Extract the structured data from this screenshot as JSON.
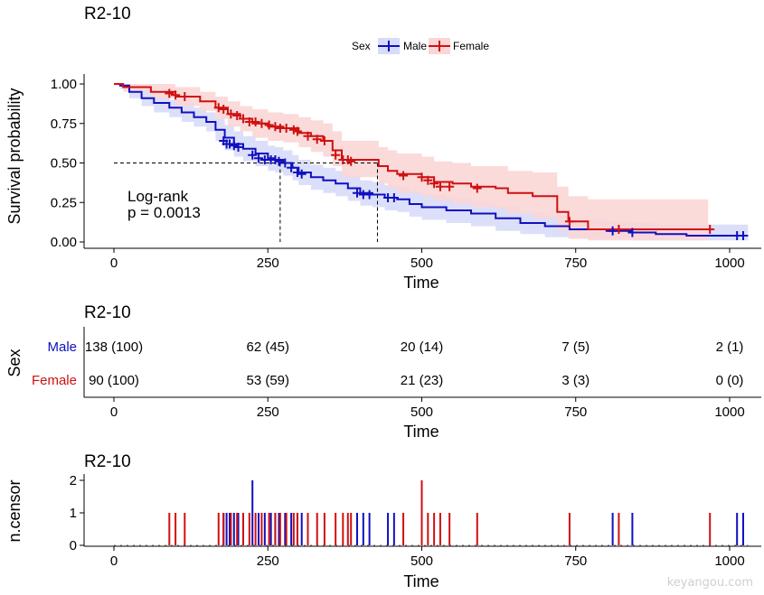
{
  "chart_data": [
    {
      "type": "line",
      "subtype": "kaplan-meier",
      "title": "R2-10",
      "xlabel": "Time",
      "ylabel": "Survival probability",
      "xlim": [
        0,
        1050
      ],
      "ylim": [
        0,
        1
      ],
      "xticks": [
        "0",
        "250",
        "500",
        "750",
        "1000"
      ],
      "yticks": [
        "0.00",
        "0.25",
        "0.50",
        "0.75",
        "1.00"
      ],
      "legend": {
        "title": "Sex",
        "placement": "top",
        "entries": [
          "Male",
          "Female"
        ]
      },
      "colors": {
        "Male": "#1010c0",
        "Female": "#d01010",
        "MaleBand": "#d8dcf8",
        "FemaleBand": "#fbd6d6"
      },
      "annotation": [
        "Log-rank",
        "p = 0.0013"
      ],
      "median_lines": [
        270,
        428
      ],
      "series": [
        {
          "name": "Male",
          "steps": [
            [
              0,
              1.0
            ],
            [
              10,
              0.99
            ],
            [
              25,
              0.95
            ],
            [
              45,
              0.91
            ],
            [
              65,
              0.88
            ],
            [
              90,
              0.85
            ],
            [
              110,
              0.82
            ],
            [
              130,
              0.79
            ],
            [
              150,
              0.76
            ],
            [
              165,
              0.71
            ],
            [
              180,
              0.66
            ],
            [
              195,
              0.62
            ],
            [
              210,
              0.59
            ],
            [
              230,
              0.56
            ],
            [
              250,
              0.53
            ],
            [
              262,
              0.52
            ],
            [
              275,
              0.5
            ],
            [
              290,
              0.47
            ],
            [
              300,
              0.44
            ],
            [
              320,
              0.41
            ],
            [
              340,
              0.39
            ],
            [
              360,
              0.37
            ],
            [
              380,
              0.34
            ],
            [
              400,
              0.31
            ],
            [
              420,
              0.3
            ],
            [
              440,
              0.28
            ],
            [
              460,
              0.27
            ],
            [
              480,
              0.24
            ],
            [
              500,
              0.22
            ],
            [
              540,
              0.2
            ],
            [
              580,
              0.18
            ],
            [
              620,
              0.15
            ],
            [
              660,
              0.12
            ],
            [
              700,
              0.1
            ],
            [
              740,
              0.08
            ],
            [
              800,
              0.07
            ],
            [
              840,
              0.06
            ],
            [
              880,
              0.05
            ],
            [
              930,
              0.04
            ],
            [
              1030,
              0.04
            ]
          ],
          "upper": [
            1.0,
            1.0,
            0.99,
            0.96,
            0.93,
            0.9,
            0.88,
            0.85,
            0.82,
            0.78,
            0.74,
            0.7,
            0.67,
            0.64,
            0.61,
            0.6,
            0.58,
            0.55,
            0.52,
            0.49,
            0.47,
            0.45,
            0.42,
            0.39,
            0.38,
            0.36,
            0.35,
            0.32,
            0.3,
            0.28,
            0.26,
            0.23,
            0.19,
            0.17,
            0.14,
            0.13,
            0.12,
            0.11,
            0.11,
            0.11
          ],
          "lower": [
            1.0,
            0.97,
            0.91,
            0.86,
            0.82,
            0.79,
            0.76,
            0.73,
            0.7,
            0.64,
            0.58,
            0.54,
            0.51,
            0.48,
            0.45,
            0.44,
            0.42,
            0.39,
            0.36,
            0.33,
            0.31,
            0.29,
            0.26,
            0.23,
            0.22,
            0.2,
            0.19,
            0.16,
            0.14,
            0.12,
            0.1,
            0.07,
            0.05,
            0.03,
            0.02,
            0.02,
            0.01,
            0.01,
            0.01,
            0.01
          ],
          "censor_marks": [
            [
              178,
              0.64
            ],
            [
              183,
              0.62
            ],
            [
              188,
              0.62
            ],
            [
              195,
              0.61
            ],
            [
              202,
              0.6
            ],
            [
              225,
              0.55
            ],
            [
              235,
              0.53
            ],
            [
              245,
              0.52
            ],
            [
              255,
              0.52
            ],
            [
              262,
              0.52
            ],
            [
              268,
              0.51
            ],
            [
              278,
              0.5
            ],
            [
              288,
              0.47
            ],
            [
              298,
              0.44
            ],
            [
              305,
              0.43
            ],
            [
              395,
              0.31
            ],
            [
              405,
              0.3
            ],
            [
              415,
              0.3
            ],
            [
              445,
              0.28
            ],
            [
              455,
              0.28
            ],
            [
              810,
              0.07
            ],
            [
              842,
              0.06
            ],
            [
              1012,
              0.04
            ],
            [
              1022,
              0.04
            ]
          ]
        },
        {
          "name": "Female",
          "steps": [
            [
              0,
              1.0
            ],
            [
              15,
              0.98
            ],
            [
              60,
              0.95
            ],
            [
              100,
              0.92
            ],
            [
              140,
              0.89
            ],
            [
              165,
              0.85
            ],
            [
              185,
              0.81
            ],
            [
              205,
              0.78
            ],
            [
              225,
              0.75
            ],
            [
              250,
              0.73
            ],
            [
              275,
              0.72
            ],
            [
              300,
              0.69
            ],
            [
              320,
              0.67
            ],
            [
              340,
              0.64
            ],
            [
              355,
              0.58
            ],
            [
              370,
              0.52
            ],
            [
              395,
              0.52
            ],
            [
              430,
              0.48
            ],
            [
              445,
              0.45
            ],
            [
              460,
              0.43
            ],
            [
              500,
              0.41
            ],
            [
              520,
              0.38
            ],
            [
              550,
              0.37
            ],
            [
              580,
              0.35
            ],
            [
              620,
              0.34
            ],
            [
              640,
              0.31
            ],
            [
              680,
              0.29
            ],
            [
              720,
              0.19
            ],
            [
              738,
              0.13
            ],
            [
              770,
              0.08
            ],
            [
              965,
              0.08
            ]
          ],
          "upper": [
            1.0,
            1.0,
            1.0,
            0.98,
            0.95,
            0.92,
            0.89,
            0.86,
            0.84,
            0.82,
            0.81,
            0.79,
            0.77,
            0.75,
            0.7,
            0.64,
            0.64,
            0.6,
            0.58,
            0.56,
            0.54,
            0.51,
            0.5,
            0.48,
            0.48,
            0.45,
            0.44,
            0.35,
            0.29,
            0.27,
            0.27
          ],
          "lower": [
            1.0,
            0.95,
            0.91,
            0.86,
            0.83,
            0.78,
            0.73,
            0.7,
            0.66,
            0.64,
            0.63,
            0.6,
            0.57,
            0.54,
            0.48,
            0.41,
            0.41,
            0.37,
            0.34,
            0.31,
            0.29,
            0.26,
            0.24,
            0.22,
            0.21,
            0.18,
            0.15,
            0.07,
            0.02,
            0.01,
            0.01
          ],
          "censor_marks": [
            [
              90,
              0.94
            ],
            [
              100,
              0.93
            ],
            [
              115,
              0.92
            ],
            [
              170,
              0.85
            ],
            [
              178,
              0.84
            ],
            [
              190,
              0.81
            ],
            [
              200,
              0.8
            ],
            [
              210,
              0.78
            ],
            [
              220,
              0.76
            ],
            [
              230,
              0.76
            ],
            [
              240,
              0.75
            ],
            [
              252,
              0.74
            ],
            [
              262,
              0.73
            ],
            [
              270,
              0.72
            ],
            [
              280,
              0.72
            ],
            [
              292,
              0.71
            ],
            [
              298,
              0.7
            ],
            [
              315,
              0.67
            ],
            [
              330,
              0.65
            ],
            [
              342,
              0.64
            ],
            [
              360,
              0.55
            ],
            [
              372,
              0.52
            ],
            [
              380,
              0.52
            ],
            [
              385,
              0.51
            ],
            [
              470,
              0.42
            ],
            [
              500,
              0.41
            ],
            [
              510,
              0.39
            ],
            [
              520,
              0.37
            ],
            [
              530,
              0.35
            ],
            [
              545,
              0.35
            ],
            [
              590,
              0.34
            ],
            [
              740,
              0.13
            ],
            [
              820,
              0.08
            ],
            [
              968,
              0.08
            ]
          ]
        }
      ]
    },
    {
      "type": "table",
      "subtype": "number-at-risk",
      "title": "R2-10",
      "xlabel": "Time",
      "ylabel": "Sex",
      "xticks": [
        "0",
        "250",
        "500",
        "750",
        "1000"
      ],
      "rows": [
        {
          "name": "Male",
          "cells": [
            "138 (100)",
            "62 (45)",
            "20 (14)",
            "7 (5)",
            "2 (1)"
          ]
        },
        {
          "name": "Female",
          "cells": [
            "90 (100)",
            "53 (59)",
            "21 (23)",
            "3 (3)",
            "0 (0)"
          ]
        }
      ]
    },
    {
      "type": "bar",
      "subtype": "censor-count",
      "title": "R2-10",
      "xlabel": "Time",
      "ylabel": "n.censor",
      "yticks": [
        "0",
        "1",
        "2"
      ],
      "ylim": [
        0,
        2
      ],
      "xticks": [
        "0",
        "250",
        "500",
        "750",
        "1000"
      ],
      "series": [
        {
          "name": "Male",
          "x": [
            178,
            183,
            188,
            195,
            202,
            225,
            235,
            245,
            255,
            262,
            268,
            278,
            288,
            298,
            305,
            395,
            405,
            415,
            445,
            455,
            810,
            842,
            1012,
            1022
          ],
          "values": [
            1,
            1,
            1,
            1,
            1,
            2,
            1,
            1,
            1,
            1,
            1,
            1,
            1,
            1,
            1,
            1,
            1,
            1,
            1,
            1,
            1,
            1,
            1,
            1
          ]
        },
        {
          "name": "Female",
          "x": [
            90,
            100,
            115,
            170,
            178,
            190,
            200,
            210,
            220,
            230,
            240,
            252,
            262,
            270,
            280,
            292,
            298,
            315,
            330,
            342,
            360,
            372,
            380,
            385,
            470,
            500,
            510,
            520,
            530,
            545,
            590,
            740,
            820,
            968
          ],
          "values": [
            1,
            1,
            1,
            1,
            1,
            1,
            1,
            1,
            1,
            1,
            1,
            1,
            1,
            1,
            1,
            1,
            1,
            1,
            1,
            1,
            1,
            1,
            1,
            1,
            1,
            2,
            1,
            1,
            1,
            1,
            1,
            1,
            1,
            1
          ]
        }
      ]
    }
  ],
  "watermark": "keyangou.com"
}
